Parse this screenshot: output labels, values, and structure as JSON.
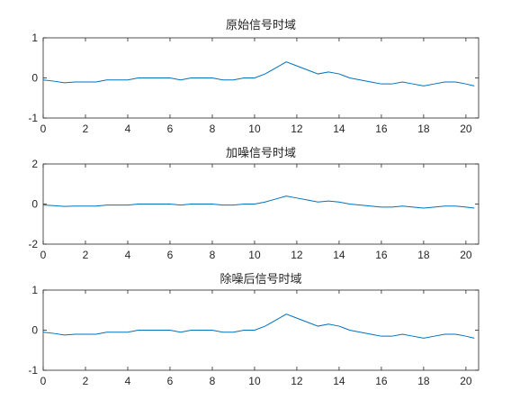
{
  "chart_data": [
    {
      "type": "line",
      "title": "原始信号时域",
      "xlim": [
        0,
        20.6
      ],
      "ylim": [
        -1,
        1
      ],
      "xticks": [
        0,
        2,
        4,
        6,
        8,
        10,
        12,
        14,
        16,
        18,
        20
      ],
      "yticks": [
        -1,
        0,
        1
      ],
      "color": "#0072BD",
      "series": [
        {
          "x": [
            0,
            0.5,
            1,
            1.5,
            2,
            2.5,
            3,
            3.5,
            4,
            4.5,
            5,
            5.5,
            6,
            6.5,
            7,
            7.5,
            8,
            8.5,
            9,
            9.5,
            10,
            10.5,
            11,
            11.5,
            12,
            12.5,
            13,
            13.5,
            14,
            14.5,
            15,
            15.5,
            16,
            16.5,
            17,
            17.5,
            18,
            18.5,
            19,
            19.5,
            20,
            20.4
          ],
          "y": [
            -0.05,
            -0.08,
            -0.12,
            -0.1,
            -0.1,
            -0.1,
            -0.05,
            -0.05,
            -0.05,
            0,
            0,
            0,
            0,
            -0.05,
            0,
            0,
            0,
            -0.05,
            -0.05,
            0,
            0,
            0.1,
            0.25,
            0.4,
            0.3,
            0.2,
            0.1,
            0.15,
            0.1,
            0,
            -0.05,
            -0.1,
            -0.15,
            -0.15,
            -0.1,
            -0.15,
            -0.2,
            -0.15,
            -0.1,
            -0.1,
            -0.15,
            -0.2
          ]
        }
      ]
    },
    {
      "type": "line",
      "title": "加噪信号时域",
      "xlim": [
        0,
        20.6
      ],
      "ylim": [
        -2,
        2
      ],
      "xticks": [
        0,
        2,
        4,
        6,
        8,
        10,
        12,
        14,
        16,
        18,
        20
      ],
      "yticks": [
        -2,
        0,
        2
      ],
      "color": "#0072BD",
      "series": [
        {
          "x": [
            0,
            0.5,
            1,
            1.5,
            2,
            2.5,
            3,
            3.5,
            4,
            4.5,
            5,
            5.5,
            6,
            6.5,
            7,
            7.5,
            8,
            8.5,
            9,
            9.5,
            10,
            10.5,
            11,
            11.5,
            12,
            12.5,
            13,
            13.5,
            14,
            14.5,
            15,
            15.5,
            16,
            16.5,
            17,
            17.5,
            18,
            18.5,
            19,
            19.5,
            20,
            20.4
          ],
          "y": [
            -0.05,
            -0.08,
            -0.12,
            -0.1,
            -0.1,
            -0.1,
            -0.05,
            -0.05,
            -0.05,
            0,
            0,
            0,
            0,
            -0.05,
            0,
            0,
            0,
            -0.05,
            -0.05,
            0,
            0,
            0.1,
            0.25,
            0.4,
            0.3,
            0.2,
            0.1,
            0.15,
            0.1,
            0,
            -0.05,
            -0.1,
            -0.15,
            -0.15,
            -0.1,
            -0.15,
            -0.2,
            -0.15,
            -0.1,
            -0.1,
            -0.15,
            -0.2
          ]
        }
      ]
    },
    {
      "type": "line",
      "title": "除噪后信号时域",
      "xlim": [
        0,
        20.6
      ],
      "ylim": [
        -1,
        1
      ],
      "xticks": [
        0,
        2,
        4,
        6,
        8,
        10,
        12,
        14,
        16,
        18,
        20
      ],
      "yticks": [
        -1,
        0,
        1
      ],
      "color": "#0072BD",
      "series": [
        {
          "x": [
            0,
            0.5,
            1,
            1.5,
            2,
            2.5,
            3,
            3.5,
            4,
            4.5,
            5,
            5.5,
            6,
            6.5,
            7,
            7.5,
            8,
            8.5,
            9,
            9.5,
            10,
            10.5,
            11,
            11.5,
            12,
            12.5,
            13,
            13.5,
            14,
            14.5,
            15,
            15.5,
            16,
            16.5,
            17,
            17.5,
            18,
            18.5,
            19,
            19.5,
            20,
            20.4
          ],
          "y": [
            -0.05,
            -0.08,
            -0.12,
            -0.1,
            -0.1,
            -0.1,
            -0.05,
            -0.05,
            -0.05,
            0,
            0,
            0,
            0,
            -0.05,
            0,
            0,
            0,
            -0.05,
            -0.05,
            0,
            0,
            0.1,
            0.25,
            0.4,
            0.3,
            0.2,
            0.1,
            0.15,
            0.1,
            0,
            -0.05,
            -0.1,
            -0.15,
            -0.15,
            -0.1,
            -0.15,
            -0.2,
            -0.15,
            -0.1,
            -0.1,
            -0.15,
            -0.2
          ]
        }
      ]
    }
  ]
}
